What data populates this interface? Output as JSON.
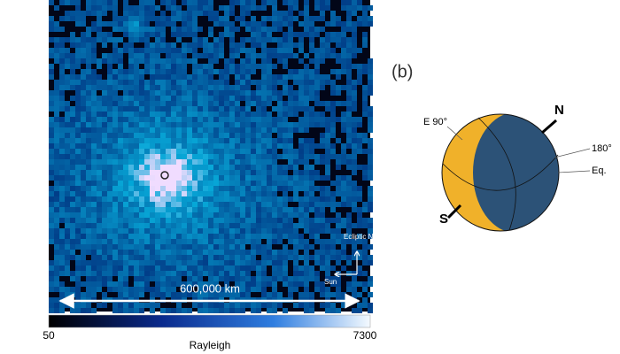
{
  "image_panel": {
    "scale_bar": "600,000 km",
    "compass": {
      "up": "Ecliptic North",
      "right": "Sun"
    }
  },
  "colorbar": {
    "min": 50,
    "max": 7300,
    "label": "Rayleigh"
  },
  "globe_panel": {
    "label": "(b)",
    "markers": {
      "east": "E 90°",
      "north": "N",
      "lon180": "180°",
      "equator": "Eq.",
      "south": "S"
    }
  }
}
